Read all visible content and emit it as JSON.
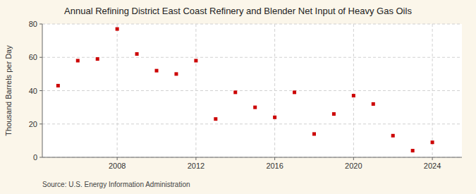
{
  "chart_data": {
    "type": "scatter",
    "title": "Annual Refining District East Coast Refinery and Blender Net Input of Heavy Gas Oils",
    "ylabel": "Thousand Barrels per Day",
    "source": "Source: U.S. Energy Information Administration",
    "x": [
      2005,
      2006,
      2007,
      2008,
      2009,
      2010,
      2011,
      2012,
      2013,
      2014,
      2015,
      2016,
      2017,
      2018,
      2019,
      2020,
      2021,
      2022,
      2023,
      2024
    ],
    "values": [
      43,
      58,
      59,
      77,
      62,
      52,
      50,
      58,
      23,
      39,
      30,
      24,
      39,
      14,
      26,
      37,
      32,
      13,
      4,
      9
    ],
    "color": "#cc0000",
    "marker": "square",
    "xlim": [
      2004.2,
      2025.5
    ],
    "ylim": [
      0,
      80
    ],
    "xticks": [
      2008,
      2012,
      2016,
      2020,
      2024
    ],
    "yticks": [
      0,
      20,
      40,
      60,
      80
    ],
    "grid": true
  }
}
